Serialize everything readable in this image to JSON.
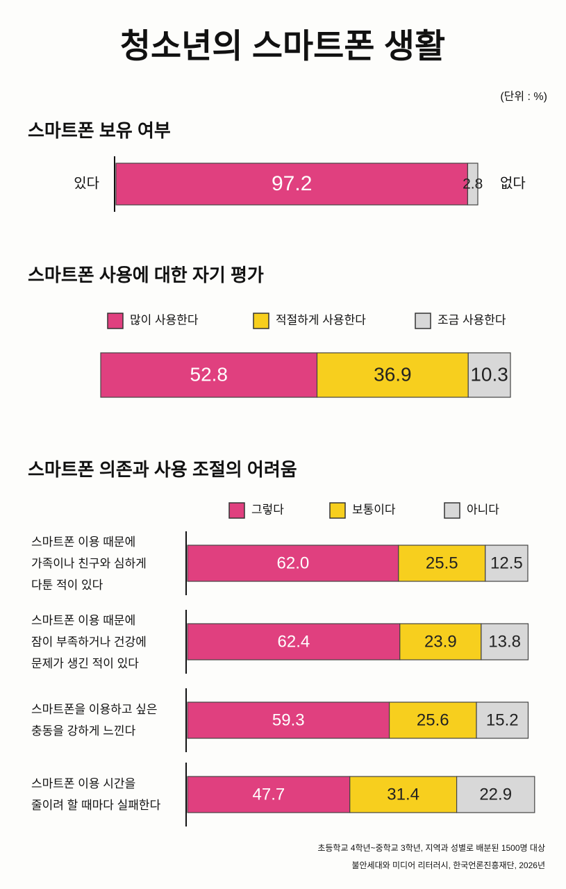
{
  "title": "청소년의 스마트폰 생활",
  "unit": "(단위 : %)",
  "notes": [
    "초등학교 4학년~중학교 3학년, 지역과 성별로 배분된 1500명 대상",
    "불안세대와 미디어 리터러시, 한국언론진흥재단, 2026년"
  ],
  "chart_data": [
    {
      "type": "bar",
      "orientation": "horizontal",
      "stacked": true,
      "legend": "sides",
      "title": "스마트폰 보유 여부",
      "xlim": [
        0,
        100
      ],
      "categories": [
        null
      ],
      "series": [
        {
          "name": "있다",
          "color": "#e0407f",
          "values": [
            97.2
          ]
        },
        {
          "name": "없다",
          "color": "#d8d8d8",
          "values": [
            2.8
          ]
        }
      ]
    },
    {
      "type": "bar",
      "orientation": "horizontal",
      "stacked": true,
      "legend": "top",
      "title": "스마트폰 사용에 대한 자기 평가",
      "xlim": [
        0,
        100
      ],
      "categories": [
        null
      ],
      "series": [
        {
          "name": "많이 사용한다",
          "color": "#e0407f",
          "values": [
            52.8
          ]
        },
        {
          "name": "적절하게 사용한다",
          "color": "#f7cf1e",
          "values": [
            36.9
          ]
        },
        {
          "name": "조금 사용한다",
          "color": "#d8d8d8",
          "values": [
            10.3
          ]
        }
      ]
    },
    {
      "type": "bar",
      "orientation": "horizontal",
      "stacked": true,
      "legend": "top",
      "title": "스마트폰 의존과 사용 조절의 어려움",
      "xlim": [
        0,
        100
      ],
      "categories": [
        "스마트폰 이용 때문에\n가족이나 친구와 심하게\n다툰 적이 있다",
        "스마트폰 이용 때문에\n잠이 부족하거나 건강에\n문제가 생긴 적이 있다",
        "스마트폰을 이용하고 싶은\n충동을 강하게 느낀다",
        "스마트폰 이용 시간을\n줄이려 할 때마다 실패한다"
      ],
      "series": [
        {
          "name": "그렇다",
          "color": "#e0407f",
          "values": [
            62.0,
            62.4,
            59.3,
            47.7
          ],
          "value_labels": [
            "62.0",
            "62.4",
            "59.3",
            "47.7"
          ]
        },
        {
          "name": "보통이다",
          "color": "#f7cf1e",
          "values": [
            25.5,
            23.9,
            25.6,
            31.4
          ],
          "value_labels": [
            "25.5",
            "23.9",
            "25.6",
            "31.4"
          ]
        },
        {
          "name": "아니다",
          "color": "#d8d8d8",
          "values": [
            12.5,
            13.8,
            15.2,
            22.9
          ],
          "value_labels": [
            "12.5",
            "13.8",
            "15.2",
            "22.9"
          ]
        }
      ]
    }
  ]
}
